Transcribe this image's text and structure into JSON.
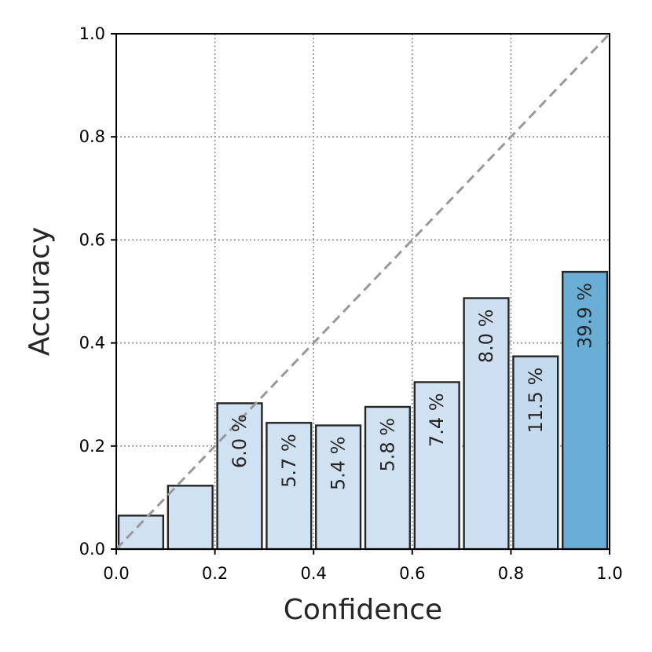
{
  "chart_data": {
    "type": "bar",
    "xlabel": "Confidence",
    "ylabel": "Accuracy",
    "xlim": [
      0,
      1
    ],
    "ylim": [
      0,
      1
    ],
    "xticks": [
      "0.0",
      "0.2",
      "0.4",
      "0.6",
      "0.8",
      "1.0"
    ],
    "yticks": [
      "0.0",
      "0.2",
      "0.4",
      "0.6",
      "0.8",
      "1.0"
    ],
    "grid": true,
    "diagonal_reference": true,
    "bins": [
      {
        "x0": 0.0,
        "x1": 0.1,
        "accuracy": 0.065,
        "label": "",
        "color": "#d0e1f2"
      },
      {
        "x0": 0.1,
        "x1": 0.2,
        "accuracy": 0.123,
        "label": "",
        "color": "#d0e1f2"
      },
      {
        "x0": 0.2,
        "x1": 0.3,
        "accuracy": 0.283,
        "label": "6.0 %",
        "color": "#d0e1f2"
      },
      {
        "x0": 0.3,
        "x1": 0.4,
        "accuracy": 0.245,
        "label": "5.7 %",
        "color": "#d0e1f2"
      },
      {
        "x0": 0.4,
        "x1": 0.5,
        "accuracy": 0.24,
        "label": "5.4 %",
        "color": "#d0e1f2"
      },
      {
        "x0": 0.5,
        "x1": 0.6,
        "accuracy": 0.276,
        "label": "5.8 %",
        "color": "#d0e1f2"
      },
      {
        "x0": 0.6,
        "x1": 0.7,
        "accuracy": 0.324,
        "label": "7.4 %",
        "color": "#d0e1f2"
      },
      {
        "x0": 0.7,
        "x1": 0.8,
        "accuracy": 0.487,
        "label": "8.0 %",
        "color": "#cddff1"
      },
      {
        "x0": 0.8,
        "x1": 0.9,
        "accuracy": 0.374,
        "label": "11.5 %",
        "color": "#c4daee"
      },
      {
        "x0": 0.9,
        "x1": 1.0,
        "accuracy": 0.538,
        "label": "39.9 %",
        "color": "#6aaed6"
      }
    ]
  }
}
